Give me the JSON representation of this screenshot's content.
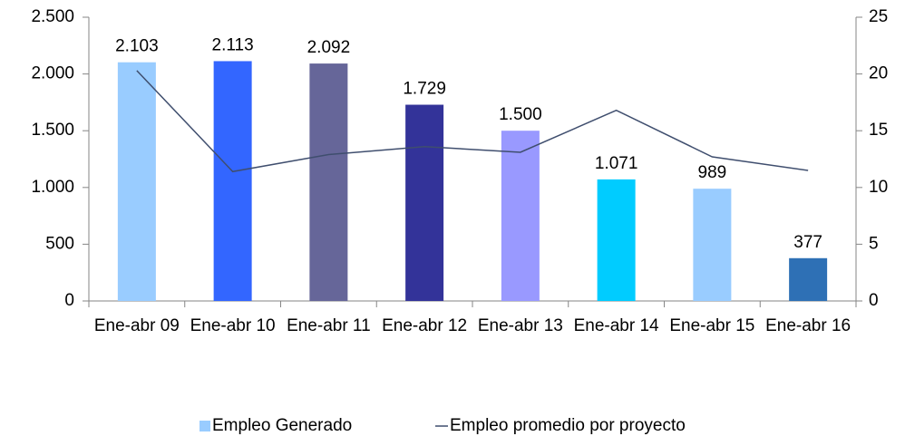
{
  "chart_data": {
    "type": "bar",
    "categories": [
      "Ene-abr 09",
      "Ene-abr 10",
      "Ene-abr 11",
      "Ene-abr 12",
      "Ene-abr 13",
      "Ene-abr 14",
      "Ene-abr 15",
      "Ene-abr 16"
    ],
    "series": [
      {
        "name": "Empleo Generado",
        "type": "bar",
        "color": "#99ccff",
        "colors": [
          "#99ccff",
          "#3366ff",
          "#666699",
          "#333399",
          "#9999ff",
          "#00ccff",
          "#99ccff",
          "#2e70b5"
        ],
        "values": [
          2103,
          2113,
          2092,
          1729,
          1500,
          1071,
          989,
          377
        ],
        "value_labels": [
          "2.103",
          "2.113",
          "2.092",
          "1.729",
          "1.500",
          "1.071",
          "989",
          "377"
        ]
      },
      {
        "name": "Empleo promedio por proyecto",
        "type": "line",
        "axis": "y2",
        "color": "#3f4e6e",
        "values": [
          20.3,
          11.4,
          12.9,
          13.6,
          13.1,
          16.8,
          12.7,
          11.5
        ]
      }
    ],
    "ylim": [
      0,
      2500
    ],
    "yticks": [
      0,
      500,
      {
        "value": 1000,
        "label": "1.000"
      },
      {
        "value": 1500,
        "label": "1.500"
      },
      {
        "value": 2000,
        "label": "2.000"
      },
      {
        "value": 2500,
        "label": "2.500"
      }
    ],
    "y2lim": [
      0,
      25
    ],
    "y2ticks": [
      0,
      5,
      10,
      15,
      20,
      25
    ],
    "legend": "bottom"
  }
}
